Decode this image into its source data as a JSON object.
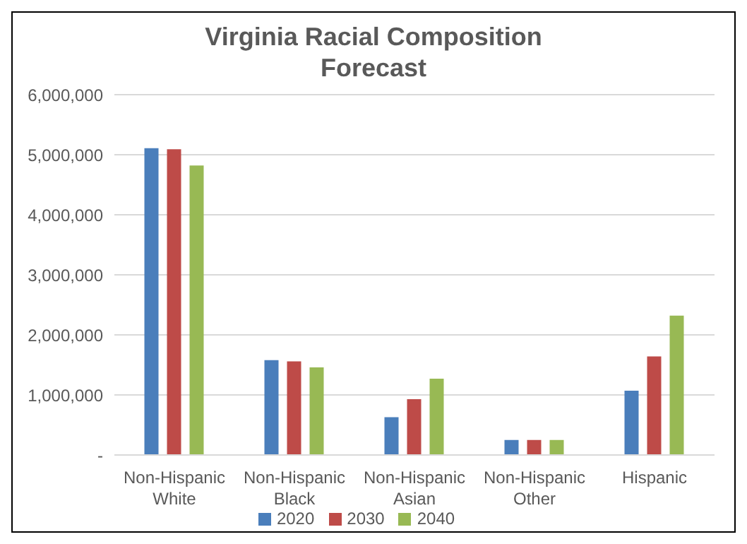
{
  "chart_data": {
    "type": "bar",
    "title": "Virginia Racial Composition Forecast",
    "categories": [
      "Non-Hispanic White",
      "Non-Hispanic Black",
      "Non-Hispanic Asian",
      "Non-Hispanic Other",
      "Hispanic"
    ],
    "series": [
      {
        "name": "2020",
        "color": "#4a7ebb",
        "values": [
          5110000,
          1580000,
          630000,
          250000,
          1070000
        ]
      },
      {
        "name": "2030",
        "color": "#be4b48",
        "values": [
          5090000,
          1560000,
          930000,
          250000,
          1640000
        ]
      },
      {
        "name": "2040",
        "color": "#98b954",
        "values": [
          4820000,
          1460000,
          1270000,
          250000,
          2320000
        ]
      }
    ],
    "ylim": [
      0,
      6000000
    ],
    "yticks": [
      {
        "value": 0,
        "label": "-"
      },
      {
        "value": 1000000,
        "label": "1,000,000"
      },
      {
        "value": 2000000,
        "label": "2,000,000"
      },
      {
        "value": 3000000,
        "label": "3,000,000"
      },
      {
        "value": 4000000,
        "label": "4,000,000"
      },
      {
        "value": 5000000,
        "label": "5,000,000"
      },
      {
        "value": 6000000,
        "label": "6,000,000"
      }
    ],
    "grid": "y",
    "legend": "bottom"
  }
}
